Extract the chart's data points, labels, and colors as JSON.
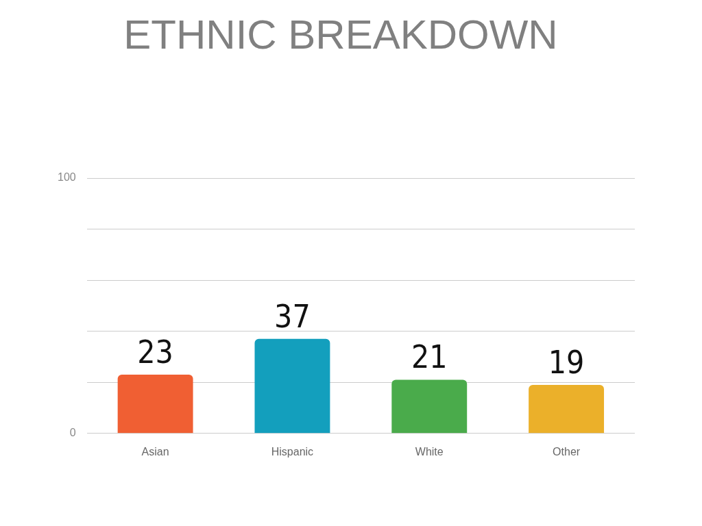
{
  "chart_data": {
    "type": "bar",
    "title": "ETHNIC BREAKDOWN",
    "categories": [
      "Asian",
      "Hispanic",
      "White",
      "Other"
    ],
    "values": [
      23,
      37,
      21,
      19
    ],
    "colors": [
      "#f05f33",
      "#139fbd",
      "#4aab4b",
      "#ebb02a"
    ],
    "ylim": [
      0,
      100
    ],
    "yticks": [
      0,
      {
        "value": 20,
        "label": null
      },
      {
        "value": 40,
        "label": null
      },
      {
        "value": 60,
        "label": null
      },
      {
        "value": 80,
        "label": null
      },
      100
    ],
    "grid": "y",
    "legend": false,
    "data_labels": true
  }
}
